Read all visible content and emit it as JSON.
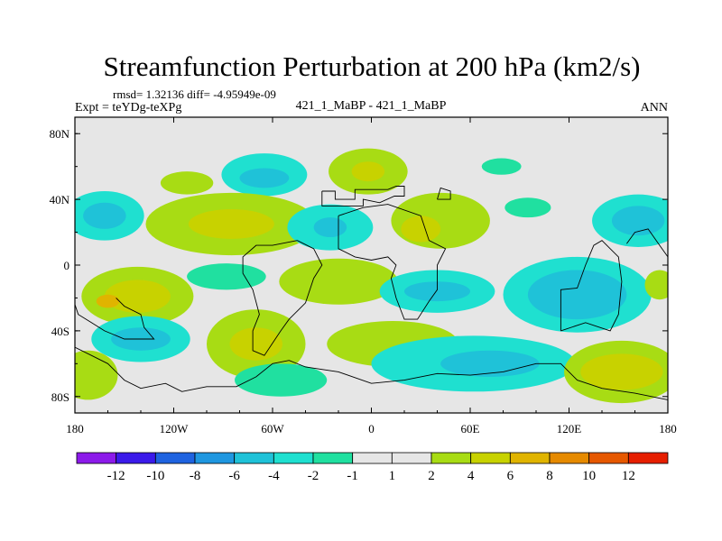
{
  "chart_data": {
    "type": "heatmap",
    "title": "Streamfunction Perturbation at 200 hPa (km2/s)",
    "stats_text": "rmsd= 1.32136 diff= -4.95949e-09",
    "expt_text": "Expt = teYDg-teXPg",
    "case_text": "421_1_MaBP - 421_1_MaBP",
    "season_text": "ANN",
    "x_ticks": [
      {
        "value": -180,
        "label": "180"
      },
      {
        "value": -120,
        "label": "120W"
      },
      {
        "value": -60,
        "label": "60W"
      },
      {
        "value": 0,
        "label": "0"
      },
      {
        "value": 60,
        "label": "60E"
      },
      {
        "value": 120,
        "label": "120E"
      },
      {
        "value": 180,
        "label": "180"
      }
    ],
    "y_ticks": [
      {
        "value": 80,
        "label": "80N"
      },
      {
        "value": 40,
        "label": "40N"
      },
      {
        "value": 0,
        "label": "0"
      },
      {
        "value": -40,
        "label": "40S"
      },
      {
        "value": -80,
        "label": "80S"
      }
    ],
    "xlim": [
      -180,
      180
    ],
    "ylim": [
      -90,
      90
    ],
    "background_color": "#e6e6e6",
    "levels": [
      {
        "label": "-12",
        "color": "#8c1aea"
      },
      {
        "label": "-10",
        "color": "#3b1aea"
      },
      {
        "label": "-8",
        "color": "#1f63e0"
      },
      {
        "label": "-6",
        "color": "#1f97e0"
      },
      {
        "label": "-4",
        "color": "#1fc2d8"
      },
      {
        "label": "-2",
        "color": "#1fe0d0"
      },
      {
        "label": "-1",
        "color": "#20e0a0"
      },
      {
        "label": "1",
        "color": "#e6e6e6"
      },
      {
        "label": "2",
        "color": "#a8dc14"
      },
      {
        "label": "4",
        "color": "#c8d200"
      },
      {
        "label": "6",
        "color": "#e0b400"
      },
      {
        "label": "8",
        "color": "#e68a00"
      },
      {
        "label": "10",
        "color": "#e65800"
      },
      {
        "label": "12",
        "color": "#e61e00"
      }
    ],
    "field": [
      {
        "lon": -112,
        "lat": 50,
        "rlon": 16,
        "rlat": 7,
        "value": 2
      },
      {
        "lon": -65,
        "lat": 55,
        "rlon": 26,
        "rlat": 13,
        "value": -2
      },
      {
        "lon": -65,
        "lat": 53,
        "rlon": 15,
        "rlat": 6,
        "value": -4
      },
      {
        "lon": -2,
        "lat": 57,
        "rlon": 24,
        "rlat": 14,
        "value": 2
      },
      {
        "lon": -2,
        "lat": 57,
        "rlon": 10,
        "rlat": 6,
        "value": 4
      },
      {
        "lon": 79,
        "lat": 60,
        "rlon": 12,
        "rlat": 5,
        "value": -1
      },
      {
        "lon": -162,
        "lat": 30,
        "rlon": 24,
        "rlat": 15,
        "value": -2
      },
      {
        "lon": -162,
        "lat": 30,
        "rlon": 13,
        "rlat": 8,
        "value": -4
      },
      {
        "lon": -85,
        "lat": 25,
        "rlon": 52,
        "rlat": 19,
        "value": 2
      },
      {
        "lon": -85,
        "lat": 25,
        "rlon": 26,
        "rlat": 9,
        "value": 4
      },
      {
        "lon": -25,
        "lat": 23,
        "rlon": 26,
        "rlat": 14,
        "value": -2
      },
      {
        "lon": -25,
        "lat": 23,
        "rlon": 10,
        "rlat": 6,
        "value": -4
      },
      {
        "lon": 42,
        "lat": 27,
        "rlon": 30,
        "rlat": 17,
        "value": 2
      },
      {
        "lon": 30,
        "lat": 22,
        "rlon": 12,
        "rlat": 8,
        "value": 4
      },
      {
        "lon": 95,
        "lat": 35,
        "rlon": 14,
        "rlat": 6,
        "value": -1
      },
      {
        "lon": 162,
        "lat": 27,
        "rlon": 28,
        "rlat": 16,
        "value": -2
      },
      {
        "lon": 162,
        "lat": 27,
        "rlon": 16,
        "rlat": 9,
        "value": -4
      },
      {
        "lon": -88,
        "lat": -7,
        "rlon": 24,
        "rlat": 8,
        "value": -1
      },
      {
        "lon": -142,
        "lat": -19,
        "rlon": 34,
        "rlat": 18,
        "value": 2
      },
      {
        "lon": -142,
        "lat": -19,
        "rlon": 20,
        "rlat": 10,
        "value": 4
      },
      {
        "lon": -160,
        "lat": -22,
        "rlon": 7,
        "rlat": 4,
        "value": 6
      },
      {
        "lon": -20,
        "lat": -10,
        "rlon": 36,
        "rlat": 14,
        "value": 2
      },
      {
        "lon": 40,
        "lat": -16,
        "rlon": 35,
        "rlat": 13,
        "value": -2
      },
      {
        "lon": 40,
        "lat": -16,
        "rlon": 20,
        "rlat": 6,
        "value": -4
      },
      {
        "lon": 125,
        "lat": -18,
        "rlon": 45,
        "rlat": 23,
        "value": -2
      },
      {
        "lon": 125,
        "lat": -18,
        "rlon": 30,
        "rlat": 15,
        "value": -4
      },
      {
        "lon": 175,
        "lat": -12,
        "rlon": 9,
        "rlat": 9,
        "value": 2
      },
      {
        "lon": -140,
        "lat": -45,
        "rlon": 30,
        "rlat": 14,
        "value": -2
      },
      {
        "lon": -140,
        "lat": -45,
        "rlon": 18,
        "rlat": 7,
        "value": -4
      },
      {
        "lon": -70,
        "lat": -48,
        "rlon": 30,
        "rlat": 21,
        "value": 2
      },
      {
        "lon": -70,
        "lat": -48,
        "rlon": 16,
        "rlat": 10,
        "value": 4
      },
      {
        "lon": 13,
        "lat": -48,
        "rlon": 40,
        "rlat": 14,
        "value": 2
      },
      {
        "lon": 62,
        "lat": -60,
        "rlon": 62,
        "rlat": 17,
        "value": -2
      },
      {
        "lon": 72,
        "lat": -60,
        "rlon": 30,
        "rlat": 8,
        "value": -4
      },
      {
        "lon": 152,
        "lat": -65,
        "rlon": 35,
        "rlat": 19,
        "value": 2
      },
      {
        "lon": 152,
        "lat": -65,
        "rlon": 25,
        "rlat": 11,
        "value": 4
      },
      {
        "lon": -172,
        "lat": -67,
        "rlon": 18,
        "rlat": 15,
        "value": 2
      },
      {
        "lon": -55,
        "lat": -70,
        "rlon": 28,
        "rlat": 10,
        "value": -1
      }
    ],
    "coastlines": [
      [
        [
          -30,
          45
        ],
        [
          -22,
          45
        ],
        [
          -22,
          40
        ],
        [
          -10,
          40
        ],
        [
          -10,
          46
        ],
        [
          10,
          46
        ],
        [
          15,
          48
        ],
        [
          20,
          48
        ],
        [
          20,
          42
        ],
        [
          14,
          42
        ],
        [
          5,
          38
        ],
        [
          -5,
          40
        ],
        [
          -5,
          36
        ],
        [
          -30,
          36
        ],
        [
          -30,
          45
        ]
      ],
      [
        [
          -20,
          30
        ],
        [
          -20,
          10
        ],
        [
          -10,
          5
        ],
        [
          0,
          3
        ],
        [
          10,
          5
        ],
        [
          15,
          0
        ],
        [
          12,
          -8
        ],
        [
          15,
          -20
        ],
        [
          20,
          -33
        ],
        [
          28,
          -33
        ],
        [
          35,
          -22
        ],
        [
          40,
          -15
        ],
        [
          40,
          0
        ],
        [
          45,
          10
        ],
        [
          35,
          15
        ],
        [
          30,
          30
        ],
        [
          10,
          37
        ],
        [
          -5,
          35
        ],
        [
          -20,
          30
        ]
      ],
      [
        [
          -45,
          15
        ],
        [
          -35,
          10
        ],
        [
          -30,
          0
        ],
        [
          -35,
          -8
        ],
        [
          -40,
          -23
        ],
        [
          -50,
          -33
        ],
        [
          -55,
          -40
        ],
        [
          -65,
          -55
        ],
        [
          -72,
          -52
        ],
        [
          -72,
          -40
        ],
        [
          -68,
          -30
        ],
        [
          -72,
          -15
        ],
        [
          -78,
          -5
        ],
        [
          -78,
          5
        ],
        [
          -70,
          12
        ],
        [
          -60,
          12
        ],
        [
          -45,
          15
        ]
      ],
      [
        [
          -155,
          -20
        ],
        [
          -150,
          -25
        ],
        [
          -140,
          -30
        ],
        [
          -138,
          -38
        ],
        [
          -132,
          -45
        ],
        [
          -150,
          -45
        ],
        [
          -162,
          -40
        ],
        [
          -170,
          -35
        ],
        [
          -178,
          -30
        ],
        [
          -180,
          -24
        ]
      ],
      [
        [
          -180,
          -50
        ],
        [
          -170,
          -55
        ],
        [
          -160,
          -60
        ],
        [
          -150,
          -70
        ],
        [
          -140,
          -75
        ],
        [
          -125,
          -72
        ],
        [
          -115,
          -77
        ],
        [
          -100,
          -74
        ],
        [
          -82,
          -74
        ],
        [
          -70,
          -68
        ],
        [
          -60,
          -60
        ],
        [
          -50,
          -58
        ],
        [
          -40,
          -62
        ],
        [
          -20,
          -65
        ],
        [
          0,
          -72
        ],
        [
          20,
          -70
        ],
        [
          40,
          -66
        ],
        [
          60,
          -67
        ],
        [
          80,
          -65
        ],
        [
          100,
          -60
        ],
        [
          115,
          -60
        ],
        [
          125,
          -70
        ],
        [
          140,
          -75
        ],
        [
          160,
          -78
        ],
        [
          180,
          -82
        ]
      ],
      [
        [
          115,
          -40
        ],
        [
          115,
          -15
        ],
        [
          125,
          -14
        ],
        [
          130,
          0
        ],
        [
          135,
          12
        ],
        [
          140,
          15
        ],
        [
          145,
          10
        ],
        [
          150,
          5
        ],
        [
          152,
          -10
        ],
        [
          150,
          -30
        ],
        [
          145,
          -40
        ],
        [
          130,
          -35
        ],
        [
          115,
          -40
        ]
      ],
      [
        [
          155,
          13
        ],
        [
          160,
          20
        ],
        [
          168,
          22
        ],
        [
          175,
          12
        ],
        [
          180,
          5
        ]
      ],
      [
        [
          40,
          40
        ],
        [
          48,
          40
        ],
        [
          48,
          45
        ],
        [
          42,
          47
        ],
        [
          40,
          40
        ]
      ]
    ]
  }
}
